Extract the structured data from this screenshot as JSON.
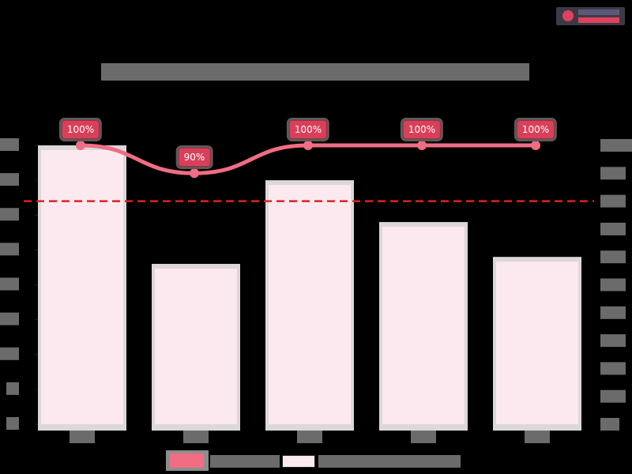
{
  "header": {
    "title": "",
    "title_obscured": true,
    "logo": "brand-logo"
  },
  "legend": {
    "items": [
      {
        "label": "",
        "obscured": true,
        "type": "line",
        "color": "#f06d84"
      },
      {
        "label": "",
        "obscured": true,
        "type": "bar",
        "color": "#fbe9ef"
      }
    ]
  },
  "chart_data": {
    "type": "bar",
    "title": "",
    "categories": [
      "",
      "",
      "",
      "",
      ""
    ],
    "categories_obscured": true,
    "series": [
      {
        "name": "",
        "axis": "left",
        "type": "bar",
        "color": "#fbe9ef",
        "values": [
          40,
          23,
          35,
          29,
          24
        ]
      },
      {
        "name": "",
        "axis": "right",
        "type": "line",
        "color": "#f06d84",
        "values": [
          100,
          90,
          100,
          100,
          100
        ],
        "labels": [
          "100%",
          "90%",
          "100%",
          "100%",
          "100%"
        ]
      }
    ],
    "reference_line": {
      "axis": "right",
      "value": 80,
      "color": "#e02020",
      "style": "dashed"
    },
    "left_axis": {
      "ticks": [
        0,
        5,
        10,
        15,
        20,
        25,
        30,
        35,
        40
      ],
      "ylim": [
        0,
        40
      ],
      "labels_obscured": true
    },
    "right_axis": {
      "ticks": [
        0,
        10,
        20,
        30,
        40,
        50,
        60,
        70,
        80,
        90,
        100
      ],
      "ylim": [
        0,
        100
      ],
      "unit": "%",
      "labels_obscured": true
    },
    "grid": false,
    "legend_position": "bottom"
  },
  "colors": {
    "background": "#000000",
    "bar_fill": "#fbe9ef",
    "bar_border": "#dcd8da",
    "line": "#f06d84",
    "label_bg": "#d8405a",
    "target_line": "#e02020"
  }
}
